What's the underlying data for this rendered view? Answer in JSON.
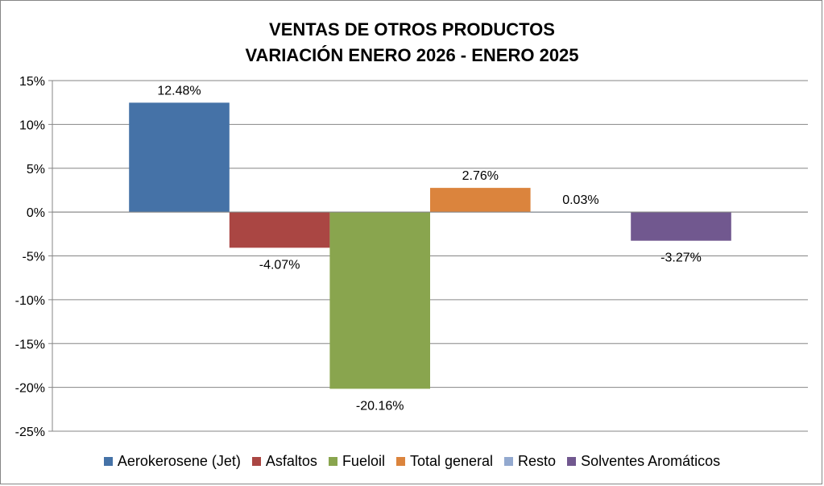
{
  "chart_data": {
    "type": "bar",
    "title": [
      "VENTAS DE OTROS PRODUCTOS",
      "VARIACIÓN ENERO 2026 - ENERO 2025"
    ],
    "xlabel": "",
    "ylabel": "",
    "ylim": [
      -25,
      15
    ],
    "yticks": [
      15,
      10,
      5,
      0,
      -5,
      -10,
      -15,
      -20,
      -25
    ],
    "ytick_labels": [
      "15%",
      "10%",
      "5%",
      "0%",
      "-5%",
      "-10%",
      "-15%",
      "-20%",
      "-25%"
    ],
    "grid": true,
    "legend_position": "bottom",
    "series": [
      {
        "name": "Aerokerosene (Jet)",
        "value": 12.48,
        "label": "12.48%",
        "color": "#4572A7"
      },
      {
        "name": "Asfaltos",
        "value": -4.07,
        "label": "-4.07%",
        "color": "#AA4643"
      },
      {
        "name": "Fueloil",
        "value": -20.16,
        "label": "-20.16%",
        "color": "#89A54E"
      },
      {
        "name": "Total general",
        "value": 2.76,
        "label": "2.76%",
        "color": "#DB843D"
      },
      {
        "name": "Resto",
        "value": 0.03,
        "label": "0.03%",
        "color": "#93A9CF"
      },
      {
        "name": "Solventes Aromáticos",
        "value": -3.27,
        "label": "-3.27%",
        "color": "#71588F"
      }
    ]
  }
}
